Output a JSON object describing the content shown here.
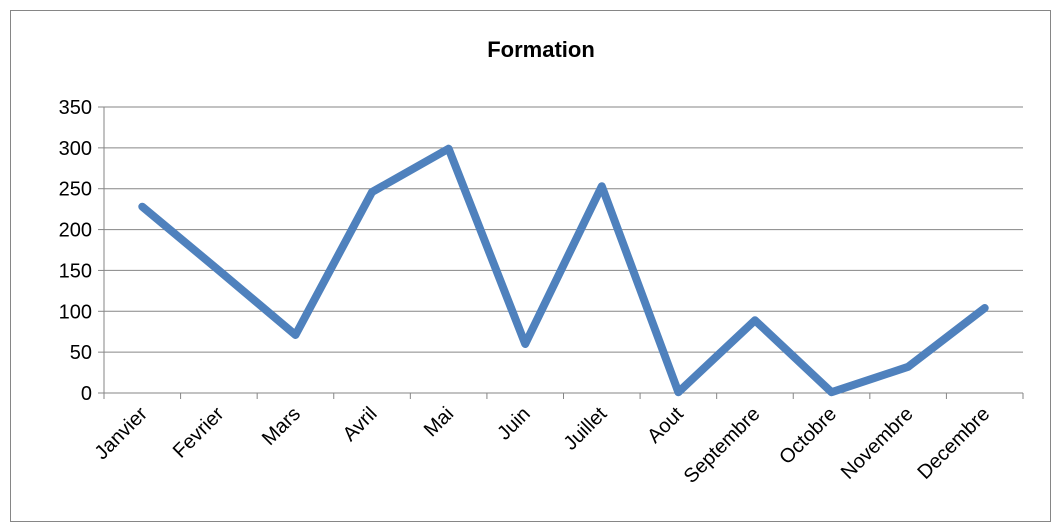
{
  "chart_data": {
    "type": "line",
    "title": "Formation",
    "xlabel": "",
    "ylabel": "",
    "categories": [
      "Janvier",
      "Fevrier",
      "Mars",
      "Avril",
      "Mai",
      "Juin",
      "Juillet",
      "Aout",
      "Septembre",
      "Octobre",
      "Novembre",
      "Decembre"
    ],
    "series": [
      {
        "values": [
          228,
          150,
          71,
          246,
          299,
          60,
          253,
          1,
          89,
          1,
          32,
          104
        ],
        "color": "#4F81BD"
      }
    ],
    "ylim": [
      0,
      350
    ],
    "yticks": [
      0,
      50,
      100,
      150,
      200,
      250,
      300,
      350
    ],
    "grid": true,
    "legend": "none"
  }
}
